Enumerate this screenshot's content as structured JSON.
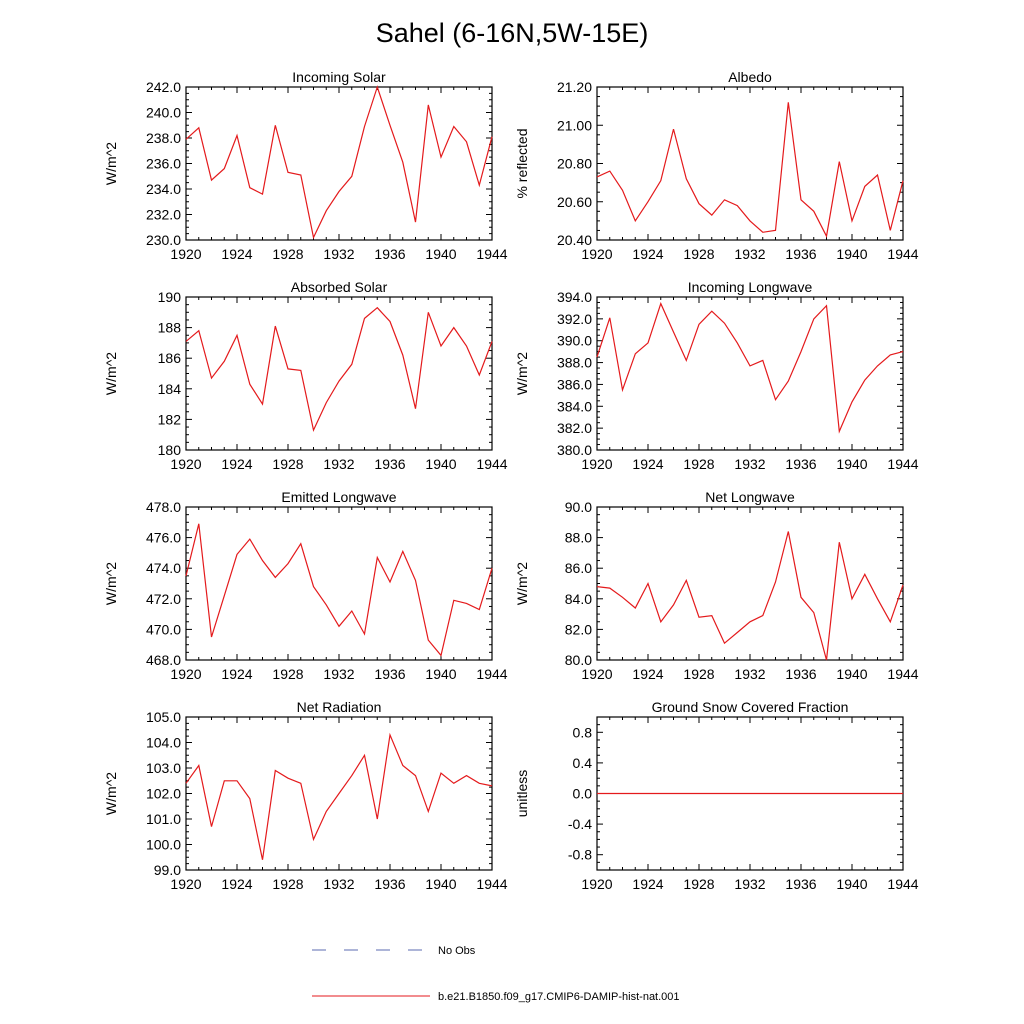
{
  "title": "Sahel (6-16N,5W-15E)",
  "legend": [
    {
      "label": "No Obs",
      "color": "#5b6bb0",
      "style": "dashed"
    },
    {
      "label": "b.e21.B1850.f09_g17.CMIP6-DAMIP-hist-nat.001",
      "color": "#e41a1c",
      "style": "solid"
    }
  ],
  "series_color": "#e41a1c",
  "chart_data": [
    {
      "type": "line",
      "title": "Incoming Solar",
      "ylabel": "W/m^2",
      "xlim": [
        1920,
        1944
      ],
      "ylim": [
        230,
        242
      ],
      "xticks": [
        "1920",
        "1924",
        "1928",
        "1932",
        "1936",
        "1940",
        "1944"
      ],
      "yticks": [
        "230.0",
        "232.0",
        "234.0",
        "236.0",
        "238.0",
        "240.0",
        "242.0"
      ],
      "x": [
        1920,
        1921,
        1922,
        1923,
        1924,
        1925,
        1926,
        1927,
        1928,
        1929,
        1930,
        1931,
        1932,
        1933,
        1934,
        1935,
        1936,
        1937,
        1938,
        1939,
        1940,
        1941,
        1942,
        1943,
        1944
      ],
      "values": [
        237.9,
        238.8,
        234.7,
        235.6,
        238.2,
        234.1,
        233.6,
        239.0,
        235.3,
        235.1,
        230.2,
        232.3,
        233.8,
        235.0,
        238.9,
        242.0,
        239.0,
        236.1,
        231.4,
        240.6,
        236.5,
        238.9,
        237.7,
        234.3,
        238.1
      ]
    },
    {
      "type": "line",
      "title": "Albedo",
      "ylabel": "% reflected",
      "xlim": [
        1920,
        1944
      ],
      "ylim": [
        20.4,
        21.2
      ],
      "xticks": [
        "1920",
        "1924",
        "1928",
        "1932",
        "1936",
        "1940",
        "1944"
      ],
      "yticks": [
        "20.40",
        "20.60",
        "20.80",
        "21.00",
        "21.20"
      ],
      "x": [
        1920,
        1921,
        1922,
        1923,
        1924,
        1925,
        1926,
        1927,
        1928,
        1929,
        1930,
        1931,
        1932,
        1933,
        1934,
        1935,
        1936,
        1937,
        1938,
        1939,
        1940,
        1941,
        1942,
        1943,
        1944
      ],
      "values": [
        20.73,
        20.76,
        20.66,
        20.5,
        20.6,
        20.71,
        20.98,
        20.72,
        20.59,
        20.53,
        20.61,
        20.58,
        20.5,
        20.44,
        20.45,
        21.12,
        20.61,
        20.55,
        20.42,
        20.81,
        20.5,
        20.68,
        20.74,
        20.45,
        20.71
      ]
    },
    {
      "type": "line",
      "title": "Absorbed Solar",
      "ylabel": "W/m^2",
      "xlim": [
        1920,
        1944
      ],
      "ylim": [
        180,
        190
      ],
      "xticks": [
        "1920",
        "1924",
        "1928",
        "1932",
        "1936",
        "1940",
        "1944"
      ],
      "yticks": [
        "180",
        "182",
        "184",
        "186",
        "188",
        "190"
      ],
      "x": [
        1920,
        1921,
        1922,
        1923,
        1924,
        1925,
        1926,
        1927,
        1928,
        1929,
        1930,
        1931,
        1932,
        1933,
        1934,
        1935,
        1936,
        1937,
        1938,
        1939,
        1940,
        1941,
        1942,
        1943,
        1944
      ],
      "values": [
        187.1,
        187.8,
        184.7,
        185.8,
        187.5,
        184.3,
        183.0,
        188.1,
        185.3,
        185.2,
        181.3,
        183.1,
        184.5,
        185.6,
        188.6,
        189.3,
        188.4,
        186.2,
        182.7,
        189.0,
        186.8,
        188.0,
        186.8,
        184.9,
        187.1
      ]
    },
    {
      "type": "line",
      "title": "Incoming Longwave",
      "ylabel": "W/m^2",
      "xlim": [
        1920,
        1944
      ],
      "ylim": [
        380,
        394
      ],
      "xticks": [
        "1920",
        "1924",
        "1928",
        "1932",
        "1936",
        "1940",
        "1944"
      ],
      "yticks": [
        "380.0",
        "382.0",
        "384.0",
        "386.0",
        "388.0",
        "390.0",
        "392.0",
        "394.0"
      ],
      "x": [
        1920,
        1921,
        1922,
        1923,
        1924,
        1925,
        1926,
        1927,
        1928,
        1929,
        1930,
        1931,
        1932,
        1933,
        1934,
        1935,
        1936,
        1937,
        1938,
        1939,
        1940,
        1941,
        1942,
        1943,
        1944
      ],
      "values": [
        388.5,
        392.1,
        385.5,
        388.8,
        389.8,
        393.4,
        390.8,
        388.2,
        391.5,
        392.7,
        391.6,
        389.8,
        387.7,
        388.2,
        384.6,
        386.3,
        389.0,
        392.0,
        393.2,
        381.7,
        384.4,
        386.4,
        387.7,
        388.7,
        389.0
      ]
    },
    {
      "type": "line",
      "title": "Emitted Longwave",
      "ylabel": "W/m^2",
      "xlim": [
        1920,
        1944
      ],
      "ylim": [
        468,
        478
      ],
      "xticks": [
        "1920",
        "1924",
        "1928",
        "1932",
        "1936",
        "1940",
        "1944"
      ],
      "yticks": [
        "468.0",
        "470.0",
        "472.0",
        "474.0",
        "476.0",
        "478.0"
      ],
      "x": [
        1920,
        1921,
        1922,
        1923,
        1924,
        1925,
        1926,
        1927,
        1928,
        1929,
        1930,
        1931,
        1932,
        1933,
        1934,
        1935,
        1936,
        1937,
        1938,
        1939,
        1940,
        1941,
        1942,
        1943,
        1944
      ],
      "values": [
        473.5,
        476.9,
        469.5,
        472.2,
        474.9,
        475.9,
        474.5,
        473.4,
        474.3,
        475.6,
        472.8,
        471.6,
        470.2,
        471.2,
        469.7,
        474.7,
        473.1,
        475.1,
        473.2,
        469.3,
        468.3,
        471.9,
        471.7,
        471.3,
        474.0
      ]
    },
    {
      "type": "line",
      "title": "Net Longwave",
      "ylabel": "W/m^2",
      "xlim": [
        1920,
        1944
      ],
      "ylim": [
        80,
        90
      ],
      "xticks": [
        "1920",
        "1924",
        "1928",
        "1932",
        "1936",
        "1940",
        "1944"
      ],
      "yticks": [
        "80.0",
        "82.0",
        "84.0",
        "86.0",
        "88.0",
        "90.0"
      ],
      "x": [
        1920,
        1921,
        1922,
        1923,
        1924,
        1925,
        1926,
        1927,
        1928,
        1929,
        1930,
        1931,
        1932,
        1933,
        1934,
        1935,
        1936,
        1937,
        1938,
        1939,
        1940,
        1941,
        1942,
        1943,
        1944
      ],
      "values": [
        84.8,
        84.7,
        84.1,
        83.4,
        85.0,
        82.5,
        83.6,
        85.2,
        82.8,
        82.9,
        81.1,
        81.8,
        82.5,
        82.9,
        85.1,
        88.4,
        84.1,
        83.1,
        80.0,
        87.7,
        84.0,
        85.6,
        84.0,
        82.5,
        84.9
      ]
    },
    {
      "type": "line",
      "title": "Net Radiation",
      "ylabel": "W/m^2",
      "xlim": [
        1920,
        1944
      ],
      "ylim": [
        99,
        105
      ],
      "xticks": [
        "1920",
        "1924",
        "1928",
        "1932",
        "1936",
        "1940",
        "1944"
      ],
      "yticks": [
        "99.0",
        "100.0",
        "101.0",
        "102.0",
        "103.0",
        "104.0",
        "105.0"
      ],
      "x": [
        1920,
        1921,
        1922,
        1923,
        1924,
        1925,
        1926,
        1927,
        1928,
        1929,
        1930,
        1931,
        1932,
        1933,
        1934,
        1935,
        1936,
        1937,
        1938,
        1939,
        1940,
        1941,
        1942,
        1943,
        1944
      ],
      "values": [
        102.4,
        103.1,
        100.7,
        102.5,
        102.5,
        101.8,
        99.4,
        102.9,
        102.6,
        102.4,
        100.2,
        101.3,
        102.0,
        102.7,
        103.5,
        101.0,
        104.3,
        103.1,
        102.7,
        101.3,
        102.8,
        102.4,
        102.7,
        102.4,
        102.3
      ]
    },
    {
      "type": "line",
      "title": "Ground Snow Covered Fraction",
      "ylabel": "unitless",
      "xlim": [
        1920,
        1944
      ],
      "ylim": [
        -1,
        1
      ],
      "xticks": [
        "1920",
        "1924",
        "1928",
        "1932",
        "1936",
        "1940",
        "1944"
      ],
      "yticks": [
        "-0.8",
        "-0.4",
        "0.0",
        "0.4",
        "0.8"
      ],
      "x": [
        1920,
        1944
      ],
      "values": [
        0.0,
        0.0
      ]
    }
  ]
}
